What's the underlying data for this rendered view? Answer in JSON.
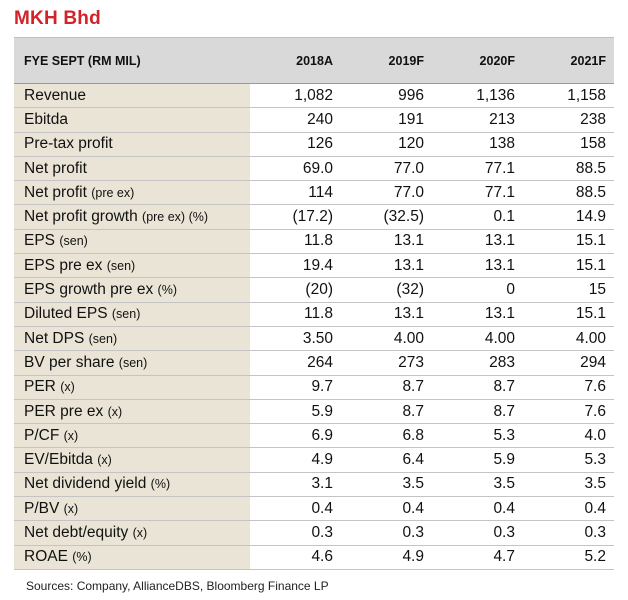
{
  "title": "MKH Bhd",
  "header": {
    "label": "FYE SEPT (RM MIL)",
    "years": [
      "2018A",
      "2019F",
      "2020F",
      "2021F"
    ]
  },
  "rows": [
    {
      "label": "Revenue",
      "unit": "",
      "values": [
        "1,082",
        "996",
        "1,136",
        "1,158"
      ]
    },
    {
      "label": "Ebitda",
      "unit": "",
      "values": [
        "240",
        "191",
        "213",
        "238"
      ]
    },
    {
      "label": "Pre-tax profit",
      "unit": "",
      "values": [
        "126",
        "120",
        "138",
        "158"
      ]
    },
    {
      "label": "Net profit",
      "unit": "",
      "values": [
        "69.0",
        "77.0",
        "77.1",
        "88.5"
      ]
    },
    {
      "label": "Net profit",
      "unit": "(pre ex)",
      "values": [
        "114",
        "77.0",
        "77.1",
        "88.5"
      ]
    },
    {
      "label": "Net profit growth",
      "unit": "(pre ex) (%)",
      "values": [
        "(17.2)",
        "(32.5)",
        "0.1",
        "14.9"
      ]
    },
    {
      "label": "EPS",
      "unit": "(sen)",
      "values": [
        "11.8",
        "13.1",
        "13.1",
        "15.1"
      ]
    },
    {
      "label": "EPS pre ex",
      "unit": "(sen)",
      "values": [
        "19.4",
        "13.1",
        "13.1",
        "15.1"
      ]
    },
    {
      "label": "EPS growth pre ex",
      "unit": "(%)",
      "values": [
        "(20)",
        "(32)",
        "0",
        "15"
      ]
    },
    {
      "label": "Diluted EPS",
      "unit": "(sen)",
      "values": [
        "11.8",
        "13.1",
        "13.1",
        "15.1"
      ]
    },
    {
      "label": "Net DPS",
      "unit": "(sen)",
      "values": [
        "3.50",
        "4.00",
        "4.00",
        "4.00"
      ]
    },
    {
      "label": "BV per share",
      "unit": "(sen)",
      "values": [
        "264",
        "273",
        "283",
        "294"
      ]
    },
    {
      "label": "PER",
      "unit": "(x)",
      "values": [
        "9.7",
        "8.7",
        "8.7",
        "7.6"
      ]
    },
    {
      "label": "PER pre ex",
      "unit": "(x)",
      "values": [
        "5.9",
        "8.7",
        "8.7",
        "7.6"
      ]
    },
    {
      "label": "P/CF",
      "unit": "(x)",
      "values": [
        "6.9",
        "6.8",
        "5.3",
        "4.0"
      ]
    },
    {
      "label": "EV/Ebitda",
      "unit": "(x)",
      "values": [
        "4.9",
        "6.4",
        "5.9",
        "5.3"
      ]
    },
    {
      "label": "Net dividend yield",
      "unit": "(%)",
      "values": [
        "3.1",
        "3.5",
        "3.5",
        "3.5"
      ]
    },
    {
      "label": "P/BV",
      "unit": "(x)",
      "values": [
        "0.4",
        "0.4",
        "0.4",
        "0.4"
      ]
    },
    {
      "label": "Net debt/equity",
      "unit": "(x)",
      "values": [
        "0.3",
        "0.3",
        "0.3",
        "0.3"
      ]
    },
    {
      "label": "ROAE",
      "unit": "(%)",
      "values": [
        "4.6",
        "4.9",
        "4.7",
        "5.2"
      ]
    }
  ],
  "source": "Sources: Company, AllianceDBS, Bloomberg Finance LP",
  "colors": {
    "title": "#d2232a",
    "header_bg": "#d9d9d9",
    "label_bg": "#e9e4d6"
  }
}
